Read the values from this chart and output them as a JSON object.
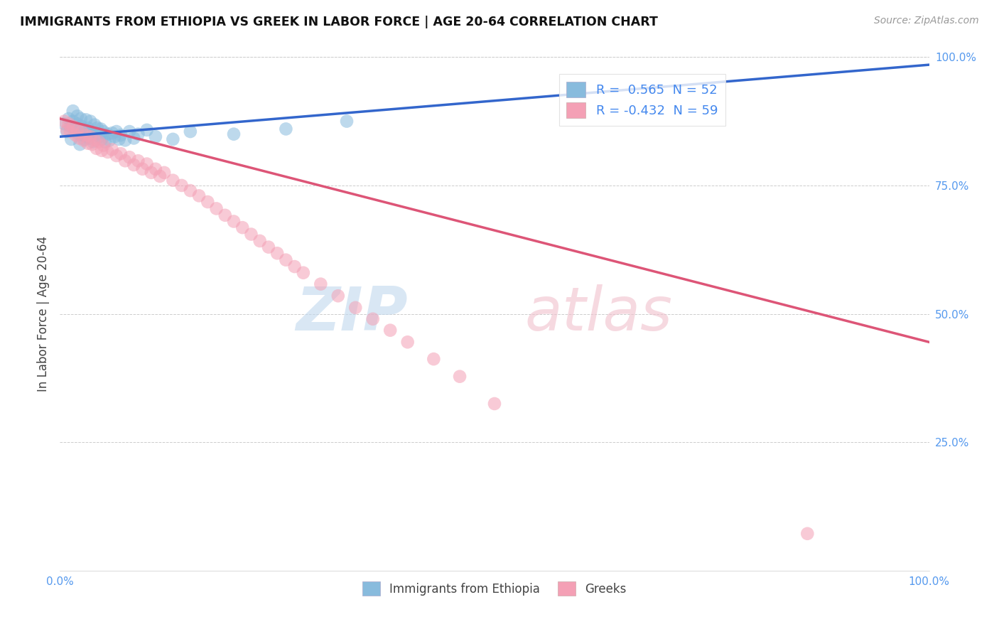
{
  "title": "IMMIGRANTS FROM ETHIOPIA VS GREEK IN LABOR FORCE | AGE 20-64 CORRELATION CHART",
  "source": "Source: ZipAtlas.com",
  "ylabel": "In Labor Force | Age 20-64",
  "xlim": [
    0.0,
    1.0
  ],
  "ylim": [
    0.0,
    1.0
  ],
  "x_ticks": [
    0.0,
    0.25,
    0.5,
    0.75,
    1.0
  ],
  "x_tick_labels": [
    "0.0%",
    "",
    "",
    "",
    "100.0%"
  ],
  "y_ticks": [
    0.25,
    0.5,
    0.75,
    1.0
  ],
  "y_tick_labels": [
    "25.0%",
    "50.0%",
    "75.0%",
    "100.0%"
  ],
  "ethiopia_color": "#88bbdd",
  "greek_color": "#f4a0b5",
  "ethiopia_R": 0.565,
  "ethiopia_N": 52,
  "greek_R": -0.432,
  "greek_N": 59,
  "trend_ethiopia_color": "#3366cc",
  "trend_greek_color": "#dd5577",
  "legend_labels": [
    "Immigrants from Ethiopia",
    "Greeks"
  ],
  "ethiopia_x": [
    0.005,
    0.008,
    0.01,
    0.012,
    0.013,
    0.015,
    0.015,
    0.018,
    0.02,
    0.02,
    0.022,
    0.023,
    0.024,
    0.025,
    0.026,
    0.027,
    0.028,
    0.03,
    0.03,
    0.031,
    0.032,
    0.033,
    0.035,
    0.035,
    0.037,
    0.038,
    0.04,
    0.041,
    0.043,
    0.045,
    0.047,
    0.048,
    0.05,
    0.052,
    0.055,
    0.057,
    0.06,
    0.063,
    0.065,
    0.068,
    0.07,
    0.075,
    0.08,
    0.085,
    0.09,
    0.1,
    0.11,
    0.13,
    0.15,
    0.2,
    0.26,
    0.33
  ],
  "ethiopia_y": [
    0.87,
    0.855,
    0.88,
    0.865,
    0.84,
    0.895,
    0.875,
    0.86,
    0.885,
    0.87,
    0.85,
    0.83,
    0.88,
    0.865,
    0.848,
    0.86,
    0.84,
    0.878,
    0.858,
    0.845,
    0.862,
    0.842,
    0.875,
    0.855,
    0.848,
    0.835,
    0.868,
    0.85,
    0.862,
    0.845,
    0.86,
    0.84,
    0.855,
    0.835,
    0.85,
    0.838,
    0.852,
    0.845,
    0.855,
    0.84,
    0.848,
    0.838,
    0.855,
    0.842,
    0.85,
    0.858,
    0.845,
    0.84,
    0.855,
    0.85,
    0.86,
    0.875
  ],
  "greek_x": [
    0.005,
    0.008,
    0.01,
    0.012,
    0.015,
    0.018,
    0.02,
    0.022,
    0.025,
    0.027,
    0.03,
    0.032,
    0.035,
    0.037,
    0.04,
    0.042,
    0.045,
    0.048,
    0.05,
    0.055,
    0.06,
    0.065,
    0.07,
    0.075,
    0.08,
    0.085,
    0.09,
    0.095,
    0.1,
    0.105,
    0.11,
    0.115,
    0.12,
    0.13,
    0.14,
    0.15,
    0.16,
    0.17,
    0.18,
    0.19,
    0.2,
    0.21,
    0.22,
    0.23,
    0.24,
    0.25,
    0.26,
    0.27,
    0.28,
    0.3,
    0.32,
    0.34,
    0.36,
    0.38,
    0.4,
    0.43,
    0.46,
    0.5,
    0.86
  ],
  "greek_y": [
    0.875,
    0.858,
    0.87,
    0.855,
    0.865,
    0.848,
    0.858,
    0.842,
    0.855,
    0.838,
    0.848,
    0.832,
    0.845,
    0.83,
    0.838,
    0.822,
    0.835,
    0.818,
    0.828,
    0.815,
    0.82,
    0.808,
    0.812,
    0.798,
    0.805,
    0.79,
    0.798,
    0.782,
    0.792,
    0.775,
    0.782,
    0.768,
    0.775,
    0.76,
    0.75,
    0.74,
    0.73,
    0.718,
    0.705,
    0.692,
    0.68,
    0.668,
    0.655,
    0.642,
    0.63,
    0.618,
    0.605,
    0.592,
    0.58,
    0.558,
    0.535,
    0.512,
    0.49,
    0.468,
    0.445,
    0.412,
    0.378,
    0.325,
    0.072
  ]
}
